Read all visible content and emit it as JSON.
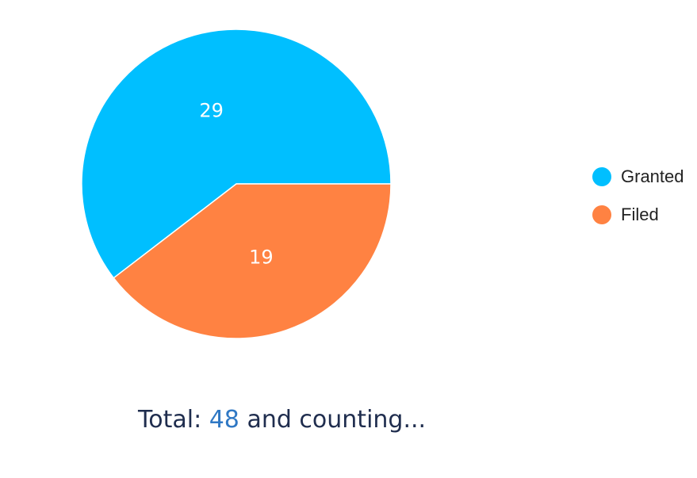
{
  "chart_data": {
    "type": "pie",
    "categories": [
      "Granted",
      "Filed"
    ],
    "values": [
      29,
      19
    ],
    "colors": [
      "#00bfff",
      "#ff8242"
    ],
    "legend_position": "right",
    "title": ""
  },
  "legend": {
    "items": [
      {
        "label": "Granted",
        "color": "#00bfff"
      },
      {
        "label": "Filed",
        "color": "#ff8242"
      }
    ]
  },
  "footer": {
    "prefix": "Total:",
    "total": "48",
    "suffix": "and counting..."
  }
}
